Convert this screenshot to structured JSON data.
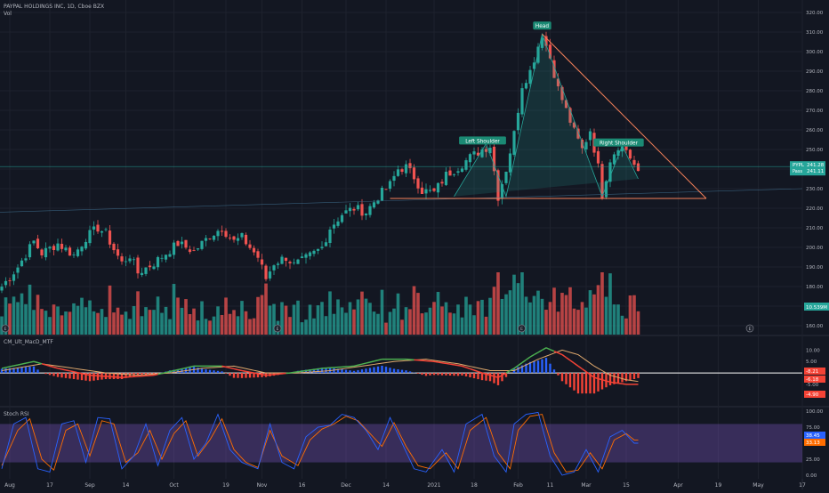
{
  "header": {
    "symbol_line": "PAYPAL HOLDINGS INC, 1D, Cboe BZX",
    "vol_label": "Vol",
    "macd_label": "CM_Ult_MacD_MTF",
    "stoch_label": "Stoch RSI"
  },
  "patterns": {
    "head": "Head",
    "left_shoulder": "Left Shoulder",
    "right_shoulder": "Right Shoulder"
  },
  "price_badge": {
    "symbol": "PYPL",
    "price": "241.28",
    "sub_label": "Pass",
    "sub_value": "241.11"
  },
  "volume_badge": "10.539M",
  "macd_badges": [
    "-8.21",
    "-6.18",
    "-4.90"
  ],
  "stoch_badges": [
    "38.45",
    "33.13"
  ],
  "event_marker": "E",
  "colors": {
    "up": "#26a69a",
    "down": "#ef5350",
    "background": "#131722",
    "macd_green": "#4caf50",
    "macd_red": "#f44336",
    "signal": "#e0a96d",
    "pattern": "#f7825a",
    "stoch_band": "#7e57c2"
  },
  "chart_data": {
    "type": "candlestick",
    "price_axis": [
      160,
      170,
      180,
      190,
      200,
      210,
      220,
      230,
      240,
      250,
      260,
      270,
      280,
      290,
      300,
      310,
      320
    ],
    "price_axis_labels": [
      "160.00",
      "170.00",
      "180.00",
      "190.00",
      "200.00",
      "210.00",
      "220.00",
      "230.00",
      "240.00",
      "250.00",
      "260.00",
      "270.00",
      "280.00",
      "290.00",
      "300.00",
      "310.00",
      "320.00"
    ],
    "x_labels": [
      {
        "label": "Aug",
        "bar": 2
      },
      {
        "label": "17",
        "bar": 12
      },
      {
        "label": "Sep",
        "bar": 22
      },
      {
        "label": "14",
        "bar": 31
      },
      {
        "label": "Oct",
        "bar": 43
      },
      {
        "label": "19",
        "bar": 56
      },
      {
        "label": "Nov",
        "bar": 65
      },
      {
        "label": "16",
        "bar": 75
      },
      {
        "label": "Dec",
        "bar": 86
      },
      {
        "label": "14",
        "bar": 96
      },
      {
        "label": "2021",
        "bar": 108
      },
      {
        "label": "18",
        "bar": 118
      },
      {
        "label": "Feb",
        "bar": 129
      },
      {
        "label": "11",
        "bar": 137
      },
      {
        "label": "Mar",
        "bar": 146
      },
      {
        "label": "15",
        "bar": 156
      },
      {
        "label": "Apr",
        "bar": 169
      },
      {
        "label": "19",
        "bar": 179
      },
      {
        "label": "May",
        "bar": 189
      },
      {
        "label": "17",
        "bar": 200
      }
    ],
    "anchors": [
      [
        0,
        180
      ],
      [
        4,
        190
      ],
      [
        8,
        203
      ],
      [
        10,
        197
      ],
      [
        14,
        202
      ],
      [
        18,
        196
      ],
      [
        21,
        205
      ],
      [
        24,
        210
      ],
      [
        26,
        207
      ],
      [
        28,
        199
      ],
      [
        30,
        192
      ],
      [
        32,
        196
      ],
      [
        34,
        187
      ],
      [
        38,
        192
      ],
      [
        41,
        197
      ],
      [
        44,
        202
      ],
      [
        48,
        198
      ],
      [
        52,
        206
      ],
      [
        55,
        210
      ],
      [
        58,
        203
      ],
      [
        60,
        205
      ],
      [
        62,
        200
      ],
      [
        64,
        195
      ],
      [
        66,
        184
      ],
      [
        68,
        192
      ],
      [
        71,
        195
      ],
      [
        73,
        191
      ],
      [
        75,
        193
      ],
      [
        78,
        197
      ],
      [
        80,
        200
      ],
      [
        82,
        210
      ],
      [
        85,
        217
      ],
      [
        88,
        220
      ],
      [
        91,
        218
      ],
      [
        94,
        226
      ],
      [
        97,
        232
      ],
      [
        99,
        240
      ],
      [
        101,
        241
      ],
      [
        103,
        236
      ],
      [
        105,
        229
      ],
      [
        108,
        228
      ],
      [
        111,
        237
      ],
      [
        114,
        241
      ],
      [
        117,
        246
      ],
      [
        120,
        250
      ],
      [
        122,
        252
      ],
      [
        124,
        226
      ],
      [
        126,
        240
      ],
      [
        128,
        258
      ],
      [
        130,
        283
      ],
      [
        132,
        290
      ],
      [
        134,
        303
      ],
      [
        135,
        309
      ],
      [
        137,
        297
      ],
      [
        139,
        281
      ],
      [
        141,
        270
      ],
      [
        143,
        259
      ],
      [
        145,
        250
      ],
      [
        147,
        260
      ],
      [
        149,
        241
      ],
      [
        150,
        227
      ],
      [
        152,
        245
      ],
      [
        154,
        252
      ],
      [
        156,
        250
      ],
      [
        158,
        242
      ],
      [
        159,
        237
      ]
    ],
    "volume_max": 26,
    "volume_axis_badge": "10.539M",
    "macd": {
      "ylim": [
        -14,
        16
      ],
      "axis_labels": [
        {
          "v": 10,
          "t": "10.00"
        },
        {
          "v": 5,
          "t": "5.00"
        },
        {
          "v": 0,
          "t": "0.00"
        },
        {
          "v": -5,
          "t": "-5.00"
        },
        {
          "v": -10,
          "t": "-10.00"
        }
      ],
      "anchors": [
        [
          0,
          2
        ],
        [
          8,
          5
        ],
        [
          14,
          2
        ],
        [
          22,
          -1
        ],
        [
          30,
          -2
        ],
        [
          38,
          -1
        ],
        [
          48,
          3
        ],
        [
          55,
          3
        ],
        [
          60,
          1
        ],
        [
          66,
          -1
        ],
        [
          72,
          0
        ],
        [
          80,
          2
        ],
        [
          88,
          3
        ],
        [
          95,
          6
        ],
        [
          101,
          6
        ],
        [
          108,
          5
        ],
        [
          115,
          3
        ],
        [
          120,
          0
        ],
        [
          124,
          -2
        ],
        [
          128,
          2
        ],
        [
          132,
          7
        ],
        [
          136,
          11
        ],
        [
          140,
          8
        ],
        [
          144,
          3
        ],
        [
          148,
          -2
        ],
        [
          152,
          -4
        ],
        [
          156,
          -5
        ],
        [
          160,
          -5
        ]
      ],
      "signal_anchors": [
        [
          0,
          1
        ],
        [
          10,
          4
        ],
        [
          18,
          2
        ],
        [
          26,
          0
        ],
        [
          34,
          -1
        ],
        [
          42,
          0
        ],
        [
          50,
          2
        ],
        [
          58,
          3
        ],
        [
          66,
          0
        ],
        [
          74,
          0
        ],
        [
          82,
          1
        ],
        [
          90,
          3
        ],
        [
          98,
          5
        ],
        [
          106,
          6
        ],
        [
          114,
          4
        ],
        [
          122,
          1
        ],
        [
          128,
          1
        ],
        [
          134,
          6
        ],
        [
          140,
          10
        ],
        [
          144,
          8
        ],
        [
          148,
          3
        ],
        [
          152,
          -1
        ],
        [
          156,
          -3
        ],
        [
          160,
          -4
        ]
      ]
    },
    "stoch": {
      "ylim": [
        0,
        100
      ],
      "axis_labels": [
        {
          "v": 100,
          "t": "100.00"
        },
        {
          "v": 75,
          "t": "75.00"
        },
        {
          "v": 50,
          "t": "50.00"
        },
        {
          "v": 25,
          "t": "25.00"
        },
        {
          "v": 0,
          "t": "0.00"
        }
      ],
      "bands": [
        20,
        80
      ],
      "k_anchors": [
        [
          0,
          10
        ],
        [
          3,
          80
        ],
        [
          6,
          90
        ],
        [
          9,
          10
        ],
        [
          12,
          5
        ],
        [
          15,
          80
        ],
        [
          18,
          85
        ],
        [
          21,
          20
        ],
        [
          24,
          90
        ],
        [
          27,
          88
        ],
        [
          30,
          10
        ],
        [
          33,
          30
        ],
        [
          36,
          80
        ],
        [
          39,
          15
        ],
        [
          42,
          70
        ],
        [
          45,
          90
        ],
        [
          48,
          25
        ],
        [
          51,
          50
        ],
        [
          54,
          95
        ],
        [
          57,
          40
        ],
        [
          60,
          20
        ],
        [
          62,
          15
        ],
        [
          64,
          10
        ],
        [
          67,
          80
        ],
        [
          70,
          20
        ],
        [
          73,
          10
        ],
        [
          76,
          60
        ],
        [
          79,
          75
        ],
        [
          82,
          78
        ],
        [
          85,
          95
        ],
        [
          88,
          90
        ],
        [
          91,
          70
        ],
        [
          94,
          40
        ],
        [
          97,
          90
        ],
        [
          100,
          50
        ],
        [
          103,
          10
        ],
        [
          106,
          5
        ],
        [
          110,
          40
        ],
        [
          113,
          5
        ],
        [
          116,
          80
        ],
        [
          120,
          95
        ],
        [
          123,
          30
        ],
        [
          126,
          5
        ],
        [
          128,
          80
        ],
        [
          131,
          95
        ],
        [
          134,
          98
        ],
        [
          137,
          30
        ],
        [
          140,
          0
        ],
        [
          143,
          5
        ],
        [
          146,
          40
        ],
        [
          149,
          5
        ],
        [
          152,
          60
        ],
        [
          155,
          70
        ],
        [
          158,
          50
        ]
      ],
      "d_anchors": [
        [
          0,
          15
        ],
        [
          4,
          70
        ],
        [
          7,
          88
        ],
        [
          10,
          25
        ],
        [
          13,
          8
        ],
        [
          16,
          70
        ],
        [
          19,
          80
        ],
        [
          22,
          30
        ],
        [
          25,
          85
        ],
        [
          28,
          80
        ],
        [
          31,
          20
        ],
        [
          34,
          35
        ],
        [
          37,
          70
        ],
        [
          40,
          25
        ],
        [
          43,
          65
        ],
        [
          46,
          85
        ],
        [
          49,
          30
        ],
        [
          52,
          55
        ],
        [
          55,
          88
        ],
        [
          58,
          40
        ],
        [
          61,
          20
        ],
        [
          64,
          12
        ],
        [
          67,
          70
        ],
        [
          70,
          30
        ],
        [
          74,
          15
        ],
        [
          77,
          55
        ],
        [
          80,
          72
        ],
        [
          83,
          80
        ],
        [
          86,
          92
        ],
        [
          89,
          85
        ],
        [
          92,
          65
        ],
        [
          95,
          45
        ],
        [
          98,
          82
        ],
        [
          101,
          45
        ],
        [
          104,
          15
        ],
        [
          107,
          10
        ],
        [
          111,
          35
        ],
        [
          114,
          10
        ],
        [
          117,
          70
        ],
        [
          121,
          90
        ],
        [
          124,
          35
        ],
        [
          127,
          10
        ],
        [
          129,
          70
        ],
        [
          132,
          92
        ],
        [
          135,
          95
        ],
        [
          138,
          35
        ],
        [
          141,
          5
        ],
        [
          144,
          8
        ],
        [
          147,
          35
        ],
        [
          150,
          10
        ],
        [
          153,
          55
        ],
        [
          156,
          65
        ],
        [
          158,
          55
        ]
      ]
    },
    "head_and_shoulders": {
      "left_shoulder": {
        "bar": 121,
        "price": 253
      },
      "head": {
        "bar": 135,
        "price": 309
      },
      "right_shoulder": {
        "bar": 155,
        "price": 252
      },
      "neckline": [
        {
          "bar": 97,
          "price": 225
        },
        {
          "bar": 176,
          "price": 225
        }
      ],
      "trendline": [
        {
          "bar": 135,
          "price": 309
        },
        {
          "bar": 176,
          "price": 225
        }
      ]
    }
  }
}
